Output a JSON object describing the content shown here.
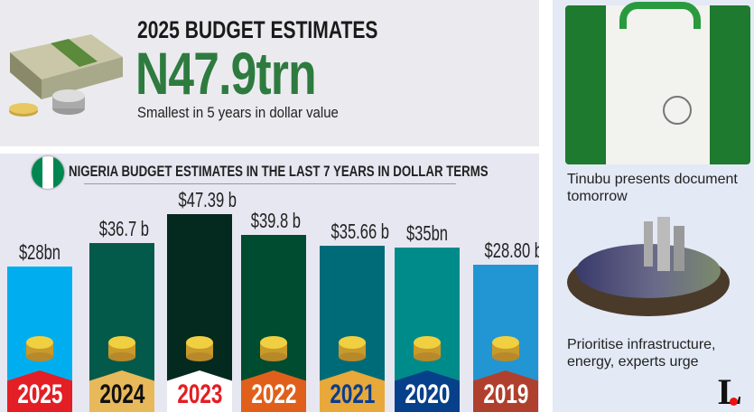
{
  "header": {
    "title": "2025 BUDGET ESTIMATES",
    "amount": "N47.9trn",
    "subtitle": "Smallest in 5 years in dollar value",
    "amount_color": "#2e7b3f"
  },
  "chart_data": {
    "type": "bar",
    "title": "NIGERIA BUDGET ESTIMATES IN THE LAST 7 YEARS IN DOLLAR TERMS",
    "categories": [
      "2025",
      "2024",
      "2023",
      "2022",
      "2021",
      "2020",
      "2019"
    ],
    "values": [
      28,
      36.7,
      47.39,
      39.8,
      35.66,
      35,
      28.8
    ],
    "unit": "USD billion",
    "data_labels": [
      "$28bn",
      "$36.7 b",
      "$47.39 b",
      "$39.8 b",
      "$35.66 b",
      "$35bn",
      "$28.80 b"
    ],
    "bar_colors": [
      "#00aeef",
      "#045a4a",
      "#04291f",
      "#004c30",
      "#006b78",
      "#008b8b",
      "#2196d3"
    ],
    "tag_colors": [
      "#e31e24",
      "#e8b95a",
      "#ffffff",
      "#e0601b",
      "#e8a83a",
      "#063f8a",
      "#b0402e"
    ],
    "tag_text_colors": [
      "#ffffff",
      "#111111",
      "#e31e24",
      "#ffffff",
      "#0a3d8f",
      "#ffffff",
      "#ffffff"
    ],
    "grid": false,
    "legend": "none"
  },
  "sidebar": {
    "story1": "Tinubu presents document tomorrow",
    "story2": "Prioritise infrastructure, energy, experts urge",
    "logo": "L"
  }
}
